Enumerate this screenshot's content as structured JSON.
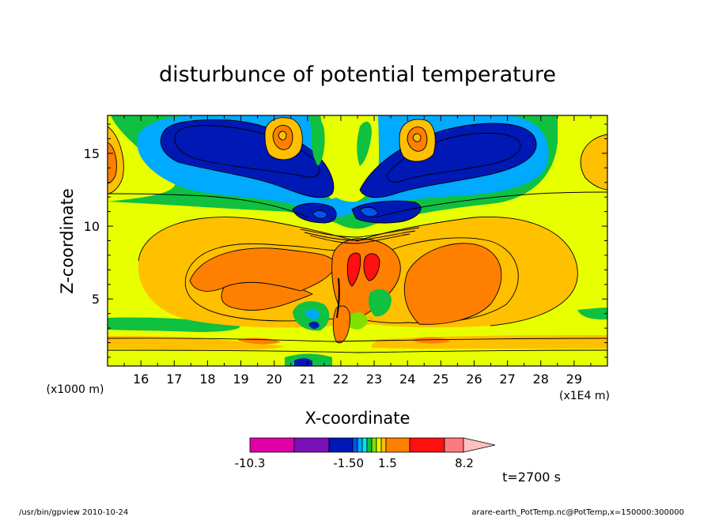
{
  "chart_data": {
    "type": "heatmap",
    "title": "disturbunce of potential temperature",
    "xlabel": "X-coordinate",
    "ylabel": "Z-coordinate",
    "x_unit_note": "(x1E4 m)",
    "y_unit_note": "(x1000 m)",
    "xlim": [
      15.0,
      30.0
    ],
    "ylim": [
      0.4,
      17.6
    ],
    "x_ticks": [
      "16",
      "17",
      "18",
      "19",
      "20",
      "21",
      "22",
      "23",
      "24",
      "25",
      "26",
      "27",
      "28",
      "29"
    ],
    "y_ticks": [
      "5",
      "10",
      "15"
    ],
    "colorbar": {
      "tick_labels": [
        "-10.3",
        "-1.50",
        "1.5",
        "8.2"
      ],
      "colors": [
        "#e000a8",
        "#7a10b8",
        "#0018b4",
        "#0055f0",
        "#00aaff",
        "#00e4e8",
        "#10c040",
        "#80e000",
        "#e8ff00",
        "#ffc000",
        "#ff8000",
        "#ff1010",
        "#ff7a80",
        "#ffc0c0"
      ]
    },
    "regions": [
      {
        "name": "upper-left-cold-core",
        "value": -1.8,
        "x": [
          17.5,
          21.0
        ],
        "z": [
          13.5,
          16.5
        ]
      },
      {
        "name": "upper-right-cold-core",
        "value": -1.8,
        "x": [
          23.0,
          26.5
        ],
        "z": [
          13.5,
          16.5
        ]
      },
      {
        "name": "left-warm-lobe",
        "value": 2.5,
        "x": [
          18.0,
          21.5
        ],
        "z": [
          3.0,
          7.5
        ]
      },
      {
        "name": "right-warm-lobe",
        "value": 2.5,
        "x": [
          23.5,
          26.5
        ],
        "z": [
          3.0,
          7.5
        ]
      },
      {
        "name": "central-warm-core",
        "value": 6.0,
        "x": [
          21.8,
          23.0
        ],
        "z": [
          5.5,
          8.5
        ]
      }
    ],
    "annotation": "t=2700 s"
  },
  "footer": {
    "left": "/usr/bin/gpview   2010-10-24",
    "right": "arare-earth_PotTemp.nc@PotTemp,x=150000:300000"
  }
}
